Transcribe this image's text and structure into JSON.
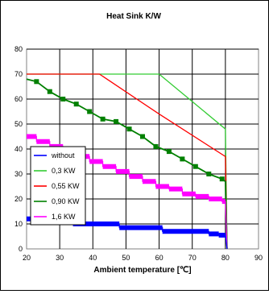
{
  "chart_data": {
    "type": "line",
    "title": "Heat Sink K/W",
    "xlabel": "Ambient temperature [℃]",
    "ylabel": "",
    "xlim": [
      20,
      90
    ],
    "ylim": [
      0,
      80
    ],
    "x_ticks": [
      20,
      30,
      40,
      50,
      60,
      70,
      80,
      90
    ],
    "y_ticks": [
      0,
      10,
      20,
      30,
      40,
      50,
      60,
      70,
      80
    ],
    "grid": true,
    "legend_position": "lower-left",
    "series": [
      {
        "name": "without",
        "color": "#0000ff",
        "style": "thick-steps",
        "x": [
          20,
          34,
          34,
          48,
          48,
          61,
          61,
          75,
          75,
          78,
          78,
          80,
          80.5
        ],
        "y": [
          12,
          12,
          10,
          10,
          8.5,
          8.5,
          7,
          7,
          6,
          6,
          5.5,
          5.5,
          0
        ]
      },
      {
        "name": "0,3 KW",
        "color": "#33cc33",
        "style": "line",
        "x": [
          20,
          60,
          80,
          80.5
        ],
        "y": [
          70,
          70,
          48,
          0
        ]
      },
      {
        "name": "0,55 KW",
        "color": "#ff0000",
        "style": "line",
        "x": [
          20,
          42,
          60,
          80,
          80.5
        ],
        "y": [
          70,
          70,
          54,
          37,
          0
        ]
      },
      {
        "name": "0,90 KW",
        "color": "#008000",
        "style": "line-markers",
        "x": [
          20,
          23,
          27,
          31,
          35,
          39,
          43,
          47,
          51,
          55,
          59,
          63,
          67,
          71,
          75,
          79,
          80,
          80.5
        ],
        "y": [
          68,
          67,
          63,
          60,
          58,
          55,
          52,
          51,
          48,
          45,
          41,
          39,
          36,
          33,
          30,
          28,
          27,
          0
        ]
      },
      {
        "name": "1,6 KW",
        "color": "#ff00ff",
        "style": "thick-steps",
        "x": [
          20,
          23,
          23,
          27,
          27,
          31,
          31,
          35,
          35,
          39,
          39,
          43,
          43,
          47,
          47,
          51,
          51,
          55,
          55,
          59,
          59,
          63,
          63,
          67,
          67,
          71,
          71,
          75,
          75,
          79,
          79,
          80,
          80.5
        ],
        "y": [
          45,
          45,
          43,
          43,
          41,
          41,
          39,
          39,
          37,
          37,
          35,
          35,
          33,
          33,
          31,
          31,
          29,
          29,
          27,
          27,
          25,
          25,
          24,
          24,
          22,
          22,
          21,
          21,
          20,
          20,
          19,
          19,
          0
        ]
      }
    ]
  }
}
